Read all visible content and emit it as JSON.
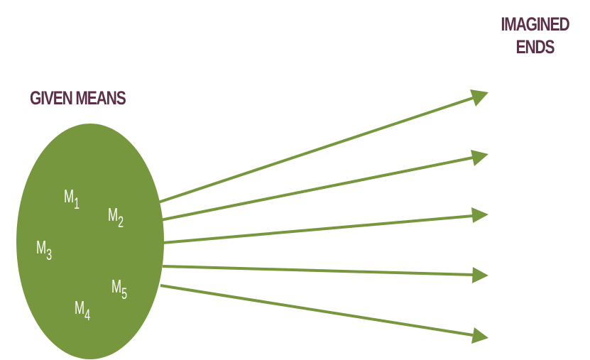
{
  "labels": {
    "given_means": "GIVEN MEANS",
    "imagined_ends_line1": "IMAGINED",
    "imagined_ends_line2": "ENDS"
  },
  "means": [
    {
      "letter": "M",
      "index": "1"
    },
    {
      "letter": "M",
      "index": "2"
    },
    {
      "letter": "M",
      "index": "3"
    },
    {
      "letter": "M",
      "index": "4"
    },
    {
      "letter": "M",
      "index": "5"
    }
  ],
  "colors": {
    "ellipse": "#77973e",
    "arrow": "#77973e",
    "heading_text": "#5a2f47",
    "means_text": "#ffffff"
  }
}
